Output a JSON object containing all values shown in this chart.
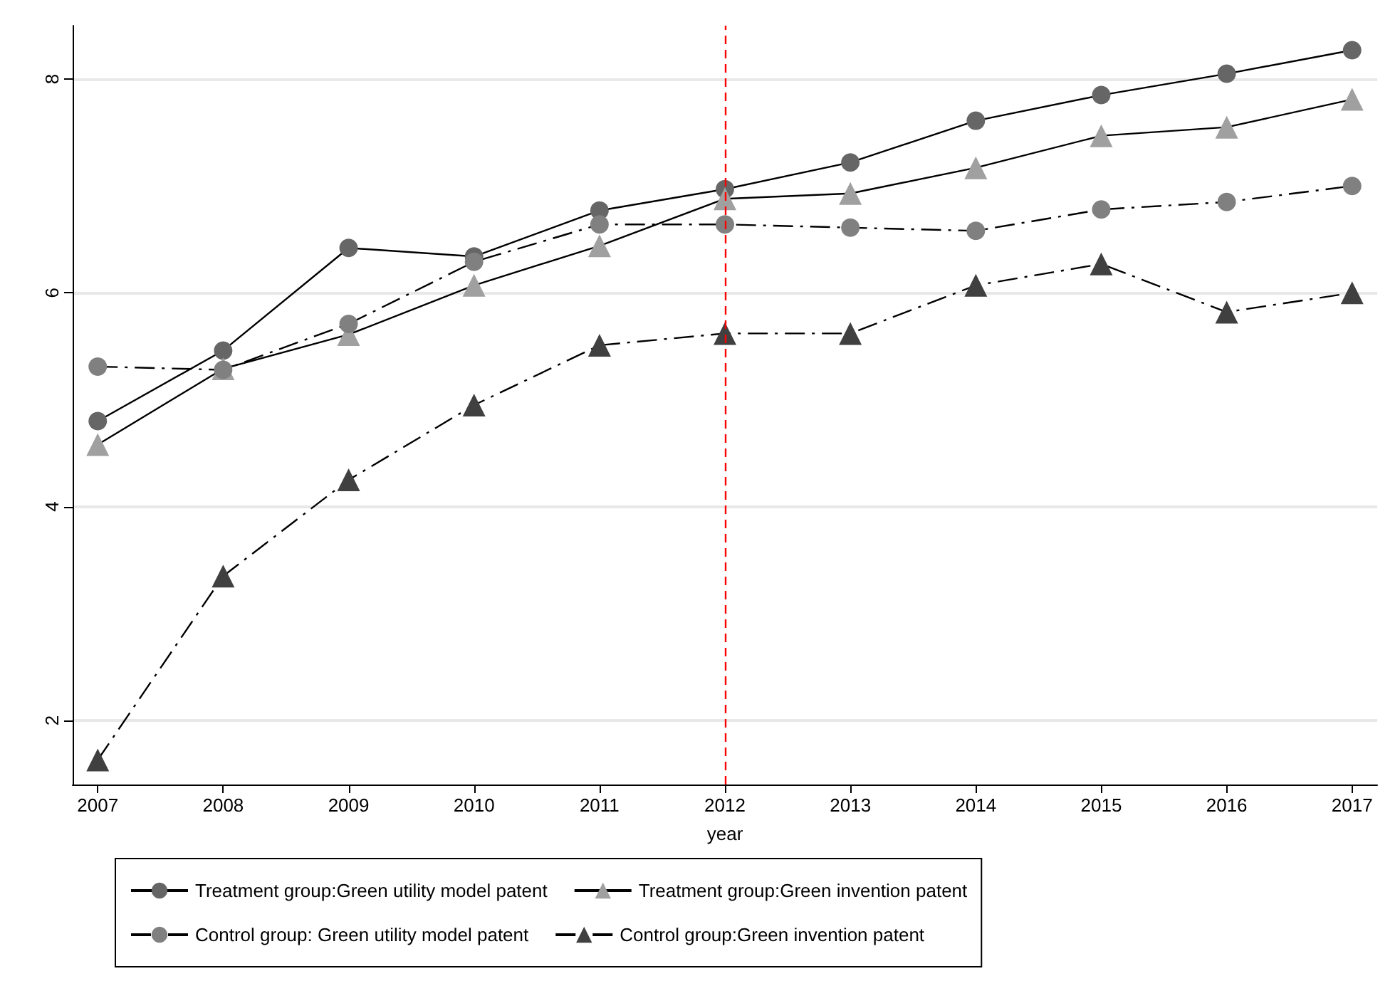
{
  "chart_data": {
    "type": "line",
    "xlabel": "year",
    "x": [
      2007,
      2008,
      2009,
      2010,
      2011,
      2012,
      2013,
      2014,
      2015,
      2016,
      2017
    ],
    "xlim": [
      2006.8,
      2017.2
    ],
    "xticks": [
      2007,
      2008,
      2009,
      2010,
      2011,
      2012,
      2013,
      2014,
      2015,
      2016,
      2017
    ],
    "ylim": [
      1.4,
      8.5
    ],
    "yticks": [
      2,
      4,
      6,
      8
    ],
    "grid": "y",
    "legend": "bottom",
    "ref_lines": [
      {
        "axis": "x",
        "value": 2012,
        "label": null,
        "color": "#ff0000",
        "line_style": "dashed"
      }
    ],
    "series": [
      {
        "name": "Treatment group:Green utility model patent",
        "color": "#666666",
        "marker": "circle",
        "line_style": "solid",
        "values": [
          4.8,
          5.46,
          6.42,
          6.34,
          6.77,
          6.97,
          7.22,
          7.61,
          7.85,
          8.05,
          8.27
        ]
      },
      {
        "name": "Treatment group:Green invention patent",
        "color": "#a0a0a0",
        "marker": "triangle",
        "line_style": "solid",
        "values": [
          4.58,
          5.29,
          5.61,
          6.07,
          6.44,
          6.88,
          6.93,
          7.17,
          7.47,
          7.55,
          7.81
        ]
      },
      {
        "name": "Control group: Green utility model patent",
        "color": "#808080",
        "marker": "circle",
        "line_style": "dashdot",
        "values": [
          5.31,
          5.28,
          5.71,
          6.29,
          6.64,
          6.64,
          6.61,
          6.58,
          6.78,
          6.85,
          7.0
        ]
      },
      {
        "name": "Control group:Green invention patent",
        "color": "#404040",
        "marker": "triangle",
        "line_style": "dashdot",
        "values": [
          1.63,
          3.35,
          4.25,
          4.95,
          5.51,
          5.62,
          5.62,
          6.07,
          6.27,
          5.82,
          6.0
        ]
      }
    ]
  }
}
